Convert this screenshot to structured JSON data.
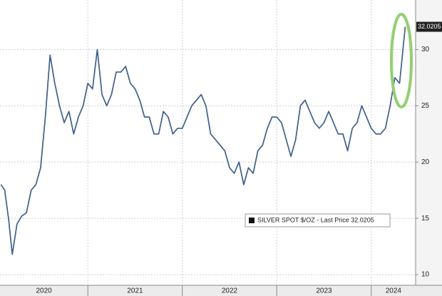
{
  "chart_data": {
    "type": "line",
    "x": [
      2020.08,
      2020.12,
      2020.16,
      2020.2,
      2020.25,
      2020.3,
      2020.35,
      2020.4,
      2020.45,
      2020.5,
      2020.55,
      2020.6,
      2020.65,
      2020.7,
      2020.75,
      2020.8,
      2020.85,
      2020.9,
      2020.95,
      2021.0,
      2021.05,
      2021.1,
      2021.15,
      2021.2,
      2021.25,
      2021.3,
      2021.35,
      2021.4,
      2021.45,
      2021.5,
      2021.55,
      2021.6,
      2021.65,
      2021.7,
      2021.75,
      2021.8,
      2021.85,
      2021.9,
      2021.95,
      2022.0,
      2022.05,
      2022.1,
      2022.15,
      2022.2,
      2022.25,
      2022.3,
      2022.35,
      2022.4,
      2022.45,
      2022.5,
      2022.55,
      2022.6,
      2022.65,
      2022.7,
      2022.75,
      2022.8,
      2022.85,
      2022.9,
      2022.95,
      2023.0,
      2023.05,
      2023.1,
      2023.15,
      2023.2,
      2023.25,
      2023.3,
      2023.35,
      2023.4,
      2023.45,
      2023.5,
      2023.55,
      2023.6,
      2023.65,
      2023.7,
      2023.75,
      2023.8,
      2023.85,
      2023.9,
      2023.95,
      2024.0,
      2024.05,
      2024.1,
      2024.15,
      2024.2,
      2024.25,
      2024.3,
      2024.33,
      2024.36
    ],
    "series": [
      {
        "name": "SILVER SPOT $/OZ - Last Price 32.0205",
        "color": "#1f3f73",
        "values": [
          18,
          17.5,
          15,
          11.8,
          14.5,
          15.2,
          15.5,
          17.5,
          18,
          19.5,
          24,
          29.5,
          27,
          25,
          23.5,
          24.5,
          22.5,
          24,
          25,
          27,
          26.5,
          30,
          26,
          25,
          26,
          28,
          28,
          28.5,
          27,
          26.5,
          25.5,
          24,
          24,
          22.5,
          22.5,
          24.5,
          24,
          22.5,
          23,
          23,
          24,
          25,
          25.5,
          26,
          25,
          22.5,
          22,
          21.5,
          21,
          19.5,
          19,
          20,
          18,
          19.5,
          19,
          21,
          21.5,
          23,
          24,
          24,
          23.5,
          22,
          20.5,
          22,
          25,
          25.5,
          24.5,
          23.5,
          23,
          23.5,
          24.5,
          23.5,
          22.5,
          22.5,
          21,
          23,
          23.5,
          25,
          24,
          23,
          22.5,
          22.5,
          23,
          25,
          27.5,
          27,
          29.5,
          32.0205
        ]
      }
    ],
    "xlim": [
      2020.07,
      2024.47
    ],
    "xticks": [
      2020,
      2021,
      2022,
      2023,
      2024
    ],
    "ylim": [
      9.05,
      34.4
    ],
    "yticks": [
      10,
      15,
      20,
      25,
      30
    ],
    "grid": true,
    "legend": "lower right"
  }
}
